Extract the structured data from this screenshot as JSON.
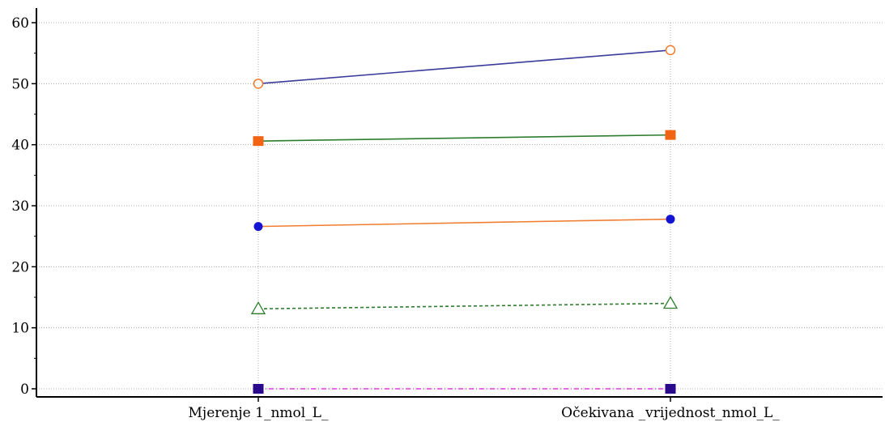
{
  "chart_data": {
    "type": "line",
    "categories": [
      "Mjerenje 1_nmol_L_",
      "Očekivana _vrijednost_nmol_L_"
    ],
    "ylim": [
      0,
      60
    ],
    "yticks": [
      0,
      10,
      20,
      30,
      40,
      50,
      60
    ],
    "grid": true,
    "series": [
      {
        "values": [
          50.0,
          55.5
        ],
        "line_color": "#3b3b9b",
        "marker": "circle-open",
        "marker_color": "#f07d2f",
        "dash": "solid"
      },
      {
        "values": [
          40.6,
          41.6
        ],
        "line_color": "#2e7d2e",
        "marker": "square",
        "marker_color": "#f06414",
        "dash": "solid"
      },
      {
        "values": [
          26.6,
          27.8
        ],
        "line_color": "#f07d2f",
        "marker": "circle",
        "marker_color": "#1414d2",
        "dash": "solid"
      },
      {
        "values": [
          13.1,
          14.0
        ],
        "line_color": "#2e7d2e",
        "marker": "triangle-open",
        "marker_color": "#2e7d2e",
        "dash": "dashed"
      },
      {
        "values": [
          0.0,
          0.0
        ],
        "line_color": "#e03ce0",
        "marker": "square",
        "marker_color": "#2a0a8c",
        "dash": "dashdot"
      }
    ]
  }
}
